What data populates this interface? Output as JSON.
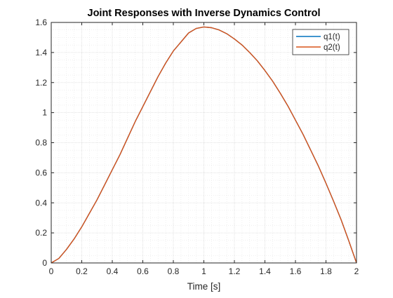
{
  "colors": {
    "background": "#ffffff",
    "axes_border": "#262626",
    "major_grid": "#d9d9d9",
    "minor_grid": "#e6e6e6",
    "q1": "#0072BD",
    "q2": "#D95319"
  },
  "chart_data": {
    "type": "line",
    "title": "Joint Responses with Inverse Dynamics Control",
    "xlabel": "Time [s]",
    "ylabel": "",
    "xlim": [
      0,
      2
    ],
    "ylim": [
      0,
      1.6
    ],
    "xticks": [
      0,
      0.2,
      0.4,
      0.6,
      0.8,
      1,
      1.2,
      1.4,
      1.6,
      1.8,
      2
    ],
    "xtick_labels": [
      "0",
      "0.2",
      "0.4",
      "0.6",
      "0.8",
      "1",
      "1.2",
      "1.4",
      "1.6",
      "1.8",
      "2"
    ],
    "yticks": [
      0,
      0.2,
      0.4,
      0.6,
      0.8,
      1,
      1.2,
      1.4,
      1.6
    ],
    "ytick_labels": [
      "0",
      "0.2",
      "0.4",
      "0.6",
      "0.8",
      "1",
      "1.2",
      "1.4",
      "1.6"
    ],
    "grid": true,
    "minor_grid": true,
    "legend_position": "top-right",
    "series": [
      {
        "name": "q1(t)",
        "color": "#0072BD",
        "x": [
          0,
          0.05,
          0.1,
          0.15,
          0.2,
          0.25,
          0.3,
          0.35,
          0.4,
          0.45,
          0.5,
          0.55,
          0.6,
          0.65,
          0.7,
          0.75,
          0.8,
          0.85,
          0.9,
          0.95,
          1.0,
          1.05,
          1.1,
          1.15,
          1.2,
          1.25,
          1.3,
          1.35,
          1.4,
          1.45,
          1.5,
          1.55,
          1.6,
          1.65,
          1.7,
          1.75,
          1.8,
          1.85,
          1.9,
          1.95,
          2.0
        ],
        "y": [
          0,
          0.03,
          0.09,
          0.16,
          0.24,
          0.33,
          0.42,
          0.52,
          0.62,
          0.72,
          0.83,
          0.94,
          1.04,
          1.14,
          1.24,
          1.33,
          1.41,
          1.47,
          1.53,
          1.56,
          1.57,
          1.565,
          1.55,
          1.525,
          1.49,
          1.45,
          1.4,
          1.345,
          1.28,
          1.21,
          1.13,
          1.045,
          0.95,
          0.855,
          0.75,
          0.645,
          0.53,
          0.41,
          0.285,
          0.145,
          0.0
        ]
      },
      {
        "name": "q2(t)",
        "color": "#D95319",
        "x": [
          0,
          0.05,
          0.1,
          0.15,
          0.2,
          0.25,
          0.3,
          0.35,
          0.4,
          0.45,
          0.5,
          0.55,
          0.6,
          0.65,
          0.7,
          0.75,
          0.8,
          0.85,
          0.9,
          0.95,
          1.0,
          1.05,
          1.1,
          1.15,
          1.2,
          1.25,
          1.3,
          1.35,
          1.4,
          1.45,
          1.5,
          1.55,
          1.6,
          1.65,
          1.7,
          1.75,
          1.8,
          1.85,
          1.9,
          1.95,
          2.0
        ],
        "y": [
          0,
          0.03,
          0.09,
          0.16,
          0.24,
          0.33,
          0.42,
          0.52,
          0.62,
          0.72,
          0.83,
          0.94,
          1.04,
          1.14,
          1.24,
          1.33,
          1.41,
          1.47,
          1.53,
          1.56,
          1.57,
          1.565,
          1.55,
          1.525,
          1.49,
          1.45,
          1.4,
          1.345,
          1.28,
          1.21,
          1.13,
          1.045,
          0.95,
          0.855,
          0.75,
          0.645,
          0.53,
          0.41,
          0.285,
          0.145,
          0.0
        ]
      }
    ]
  }
}
